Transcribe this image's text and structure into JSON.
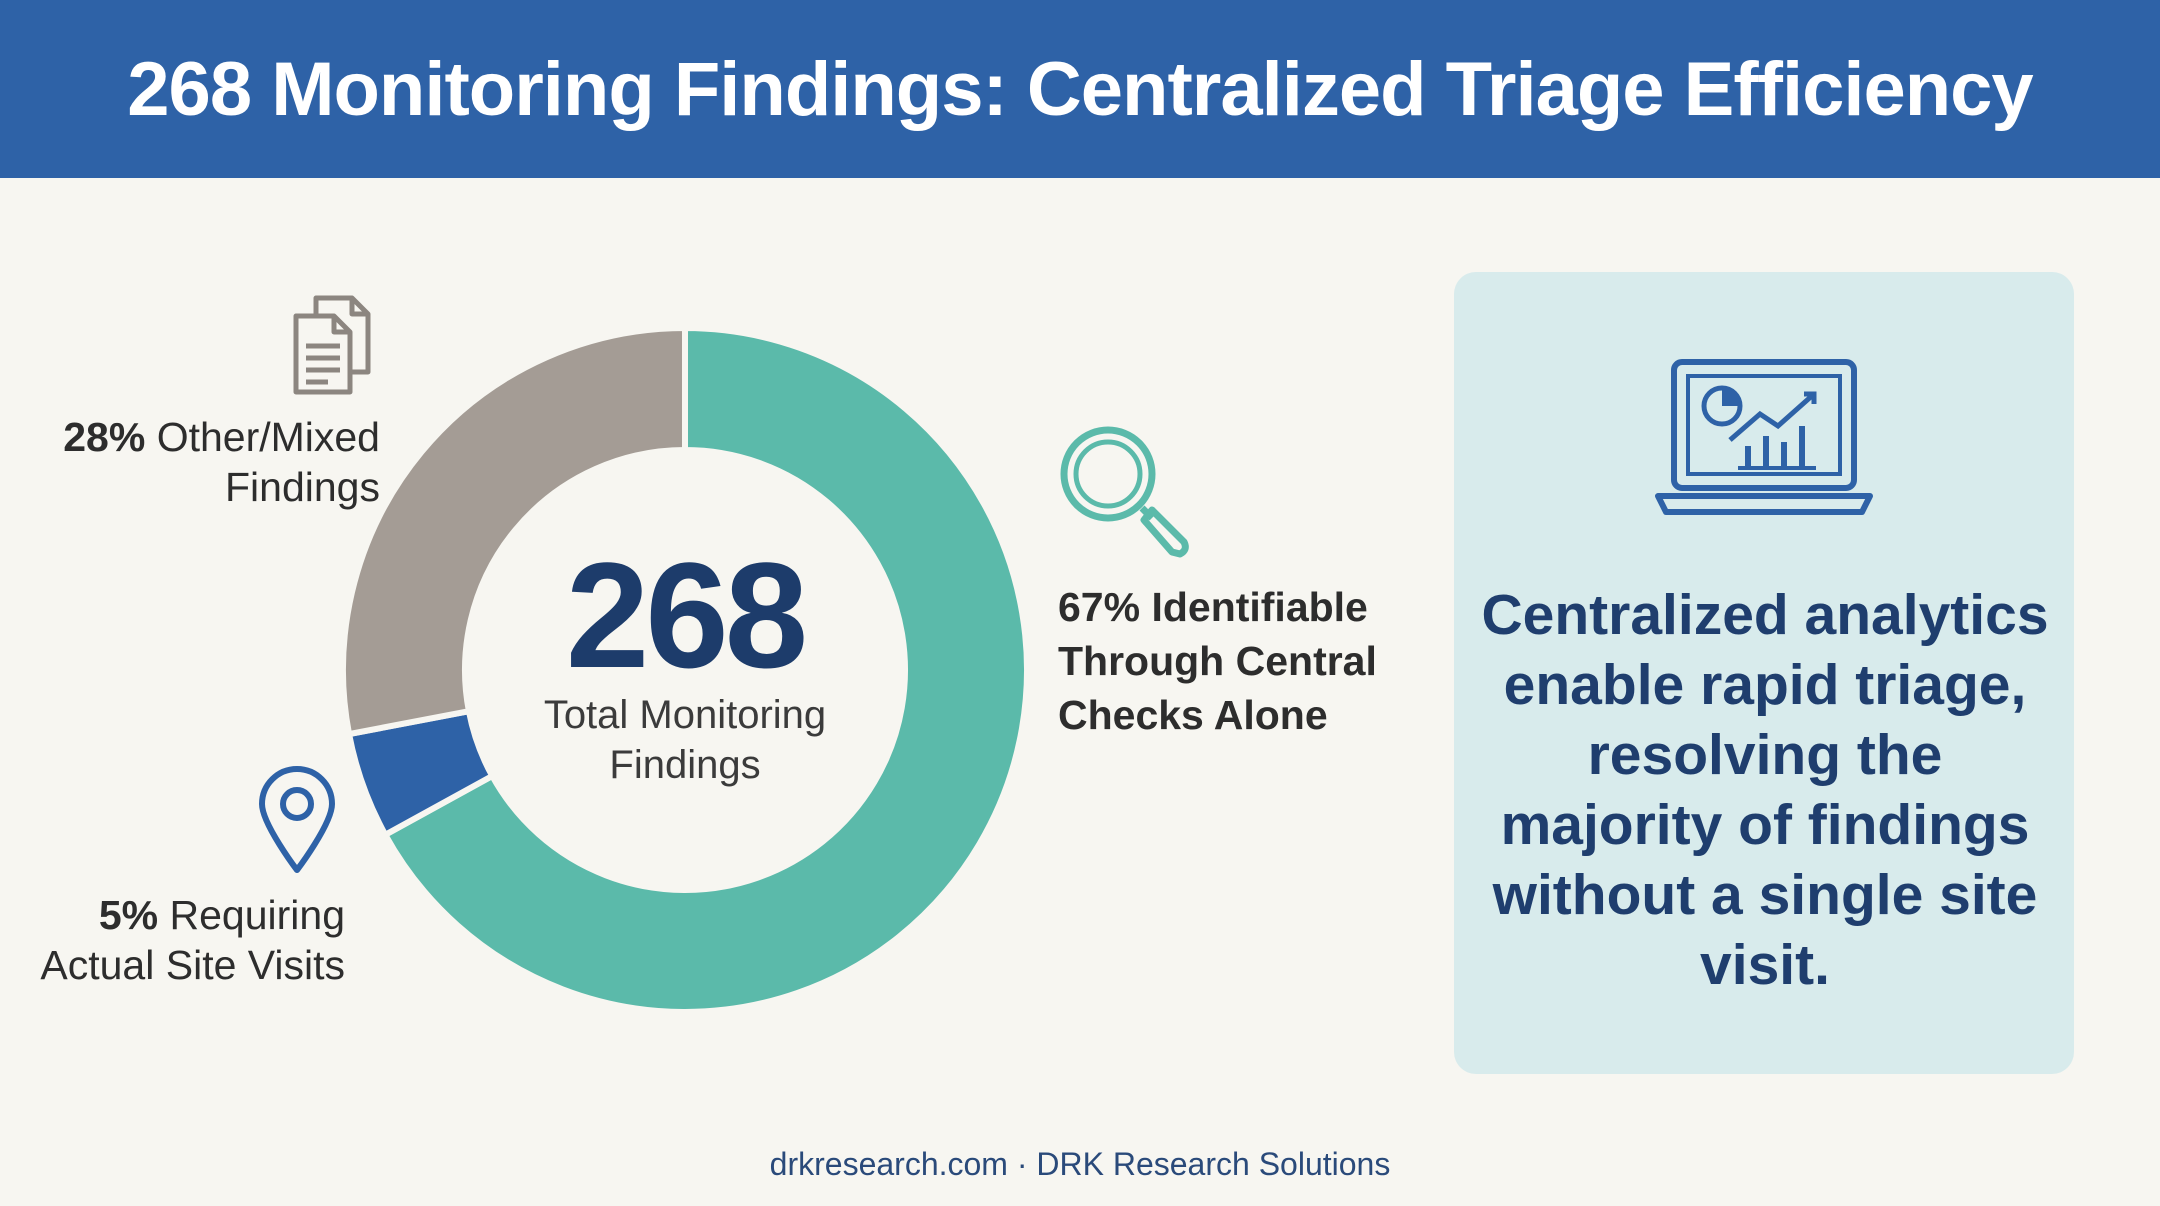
{
  "header": {
    "title": "268 Monitoring Findings: Centralized Triage Efficiency"
  },
  "chart_data": {
    "type": "pie",
    "title": "268 Monitoring Findings: Centralized Triage Efficiency",
    "center": {
      "value": "268",
      "label": "Total Monitoring Findings"
    },
    "slices": [
      {
        "label": "Identifiable Through Central Checks Alone",
        "value": 67,
        "color": "#5bbaaa"
      },
      {
        "label": "Requiring Actual Site Visits",
        "value": 5,
        "color": "#2e62a7"
      },
      {
        "label": "Other/Mixed Findings",
        "value": 28,
        "color": "#a49c95"
      }
    ]
  },
  "callouts": {
    "other": {
      "pct": "28%",
      "text": "Other/Mixed Findings"
    },
    "site": {
      "pct": "5%",
      "text": "Requiring Actual Site Visits"
    },
    "central": {
      "text": "67% Identifiable Through Central Checks Alone"
    }
  },
  "icons": {
    "documents": "documents-icon",
    "location": "map-pin-icon",
    "search": "magnifier-icon",
    "analytics": "laptop-analytics-icon"
  },
  "panel": {
    "text": "Centralized analytics enable rapid triage, resolving the majority of findings without a single site visit."
  },
  "footer": {
    "text": "drkresearch.com · DRK Research Solutions"
  }
}
